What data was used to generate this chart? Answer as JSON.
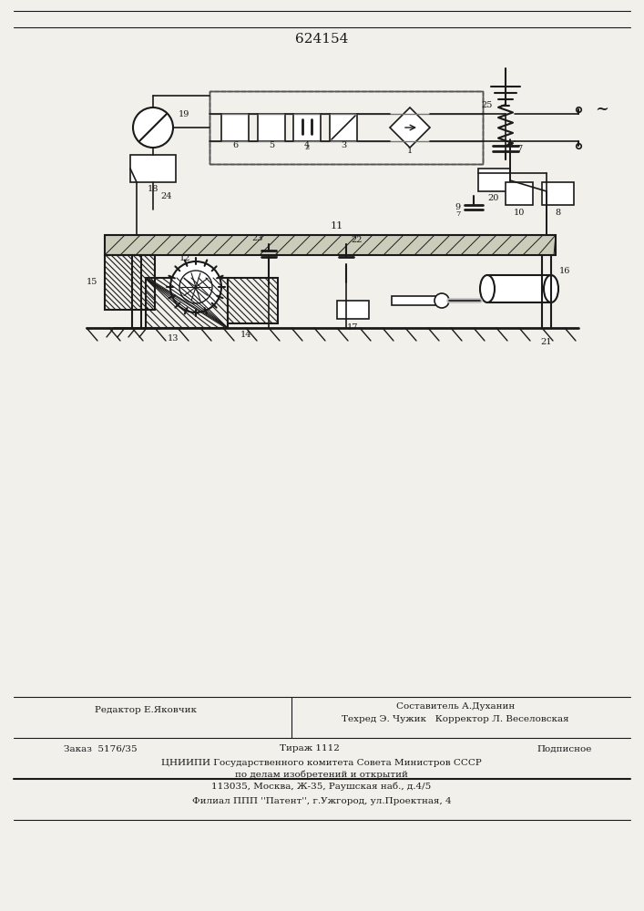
{
  "title_number": "624154",
  "bg_color": "#f2f0eb",
  "line_color": "#1a1a1a",
  "footer": {
    "editor": "Редактор Е.Яковчик",
    "composer": "Составитель А.Духанин",
    "techred": "Техред Э. Чужик   Корректор Л. Веселовская",
    "order": "Заказ  5176/35",
    "tirazh": "Тираж 1112",
    "podpisnoe": "Подписное",
    "org1": "ЦНИИПИ Государственного комитета Совета Министров СССР",
    "org2": "по делам изобретений и открытий",
    "org3": "113035, Москва, Ж-35, Раушская наб., д.4/5",
    "filial": "Филиал ППП ''Патент'', г.Ужгород, ул.Проектная, 4"
  },
  "diagram": {
    "scale": 1.0
  }
}
